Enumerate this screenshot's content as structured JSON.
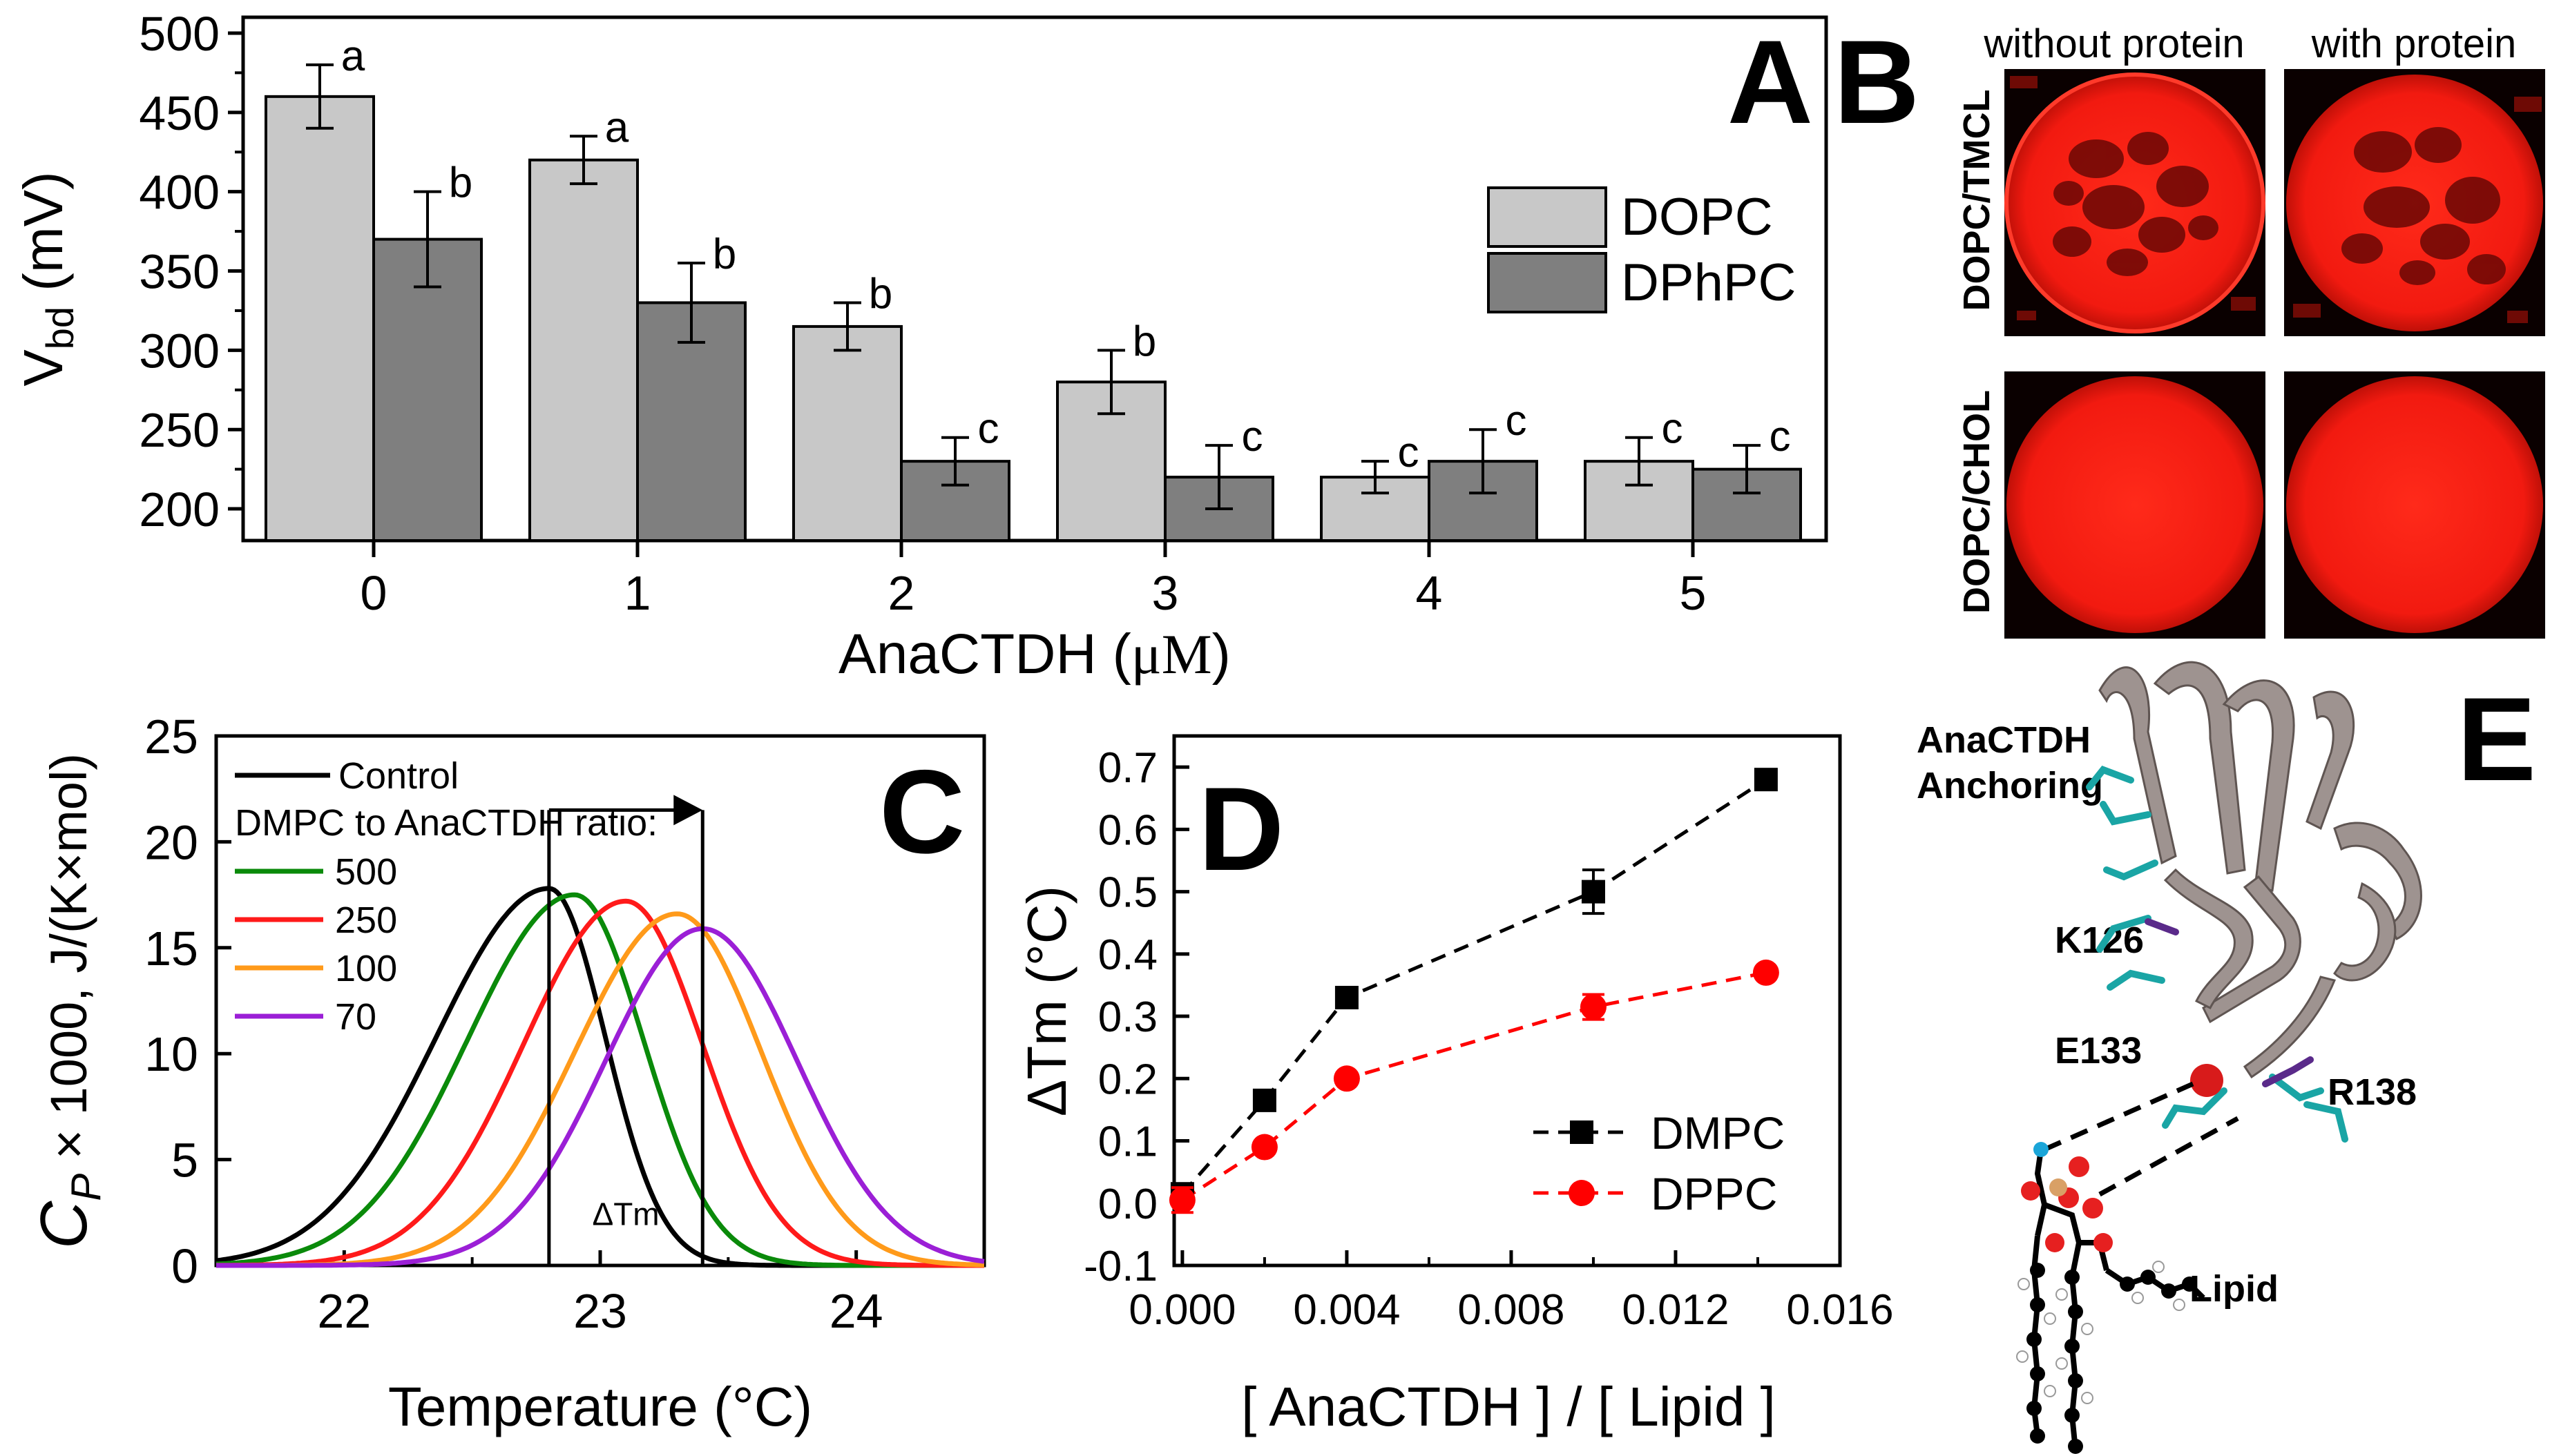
{
  "colors": {
    "dopc_bar": "#c8c8c8",
    "dphpc_bar": "#7f7f7f",
    "control": "#000000",
    "r500": "#0a8a0a",
    "r250": "#ff1a1a",
    "r100": "#ff9a1a",
    "r70": "#9b1fd6",
    "dmpc": "#000000",
    "dppc": "#ff0000",
    "confocal_red": "#ff1a1a"
  },
  "panels": {
    "a": "A",
    "b": "B",
    "c": "C",
    "d": "D",
    "e": "E"
  },
  "chart_data": [
    {
      "panel": "A",
      "type": "bar",
      "categories": [
        "0",
        "1",
        "2",
        "3",
        "4",
        "5"
      ],
      "xlabel_main": "AnaCTDH (",
      "xlabel_unit": "μM",
      "xlabel_close": ")",
      "ylabel_main": "V",
      "ylabel_sub": "bd",
      "ylabel_unit": " (mV)",
      "ylim": [
        180,
        510
      ],
      "yticks": [
        "200",
        "250",
        "300",
        "350",
        "400",
        "450",
        "500"
      ],
      "legend_position": "top-right",
      "series": [
        {
          "name": "DOPC",
          "values": [
            460,
            420,
            315,
            280,
            220,
            230
          ],
          "errors": [
            20,
            15,
            15,
            20,
            10,
            15
          ],
          "letters": [
            "a",
            "a",
            "b",
            "b",
            "c",
            "c"
          ]
        },
        {
          "name": "DPhPC",
          "values": [
            370,
            330,
            230,
            220,
            230,
            225
          ],
          "errors": [
            30,
            25,
            15,
            20,
            20,
            15
          ],
          "letters": [
            "b",
            "b",
            "c",
            "c",
            "c",
            "c"
          ]
        }
      ]
    },
    {
      "panel": "C",
      "type": "line",
      "xlabel": "Temperature (°C)",
      "ylabel_main": "C",
      "ylabel_sub": "P",
      "ylabel_rest": " × 1000, J/(K×mol)",
      "xlim": [
        21.5,
        24.5
      ],
      "ylim": [
        0,
        25
      ],
      "xticks": [
        "22",
        "23",
        "24"
      ],
      "yticks": [
        "0",
        "5",
        "10",
        "15",
        "20",
        "25"
      ],
      "legend_title": "DMPC to AnaCTDH ratio:",
      "annotation": "ΔTm",
      "delta_tm_range": [
        22.8,
        23.4
      ],
      "series": [
        {
          "name": "Control",
          "center": 22.8,
          "peak": 17.8,
          "wl": 0.44,
          "wr": 0.22
        },
        {
          "name": "500",
          "center": 22.9,
          "peak": 17.5,
          "wl": 0.42,
          "wr": 0.27
        },
        {
          "name": "250",
          "center": 23.1,
          "peak": 17.2,
          "wl": 0.4,
          "wr": 0.3
        },
        {
          "name": "100",
          "center": 23.3,
          "peak": 16.6,
          "wl": 0.4,
          "wr": 0.33
        },
        {
          "name": "70",
          "center": 23.4,
          "peak": 15.9,
          "wl": 0.38,
          "wr": 0.37
        }
      ]
    },
    {
      "panel": "D",
      "type": "scatter",
      "xlabel": "[ AnaCTDH ] / [ Lipid ]",
      "ylabel": "ΔTm (°C)",
      "xlim": [
        -0.0002,
        0.016
      ],
      "ylim": [
        -0.1,
        0.75
      ],
      "xticks": [
        "0.000",
        "0.004",
        "0.008",
        "0.012",
        "0.016"
      ],
      "yticks": [
        "-0.1",
        "0.0",
        "0.1",
        "0.2",
        "0.3",
        "0.4",
        "0.5",
        "0.6",
        "0.7"
      ],
      "legend_position": "bottom-right",
      "series": [
        {
          "name": "DMPC",
          "x": [
            0.0,
            0.002,
            0.004,
            0.01,
            0.0142
          ],
          "y": [
            0.015,
            0.165,
            0.33,
            0.5,
            0.68
          ],
          "errors": [
            0.0,
            0.0,
            0.0,
            0.035,
            0.0
          ]
        },
        {
          "name": "DPPC",
          "x": [
            0.0,
            0.002,
            0.004,
            0.01,
            0.0142
          ],
          "y": [
            0.005,
            0.09,
            0.2,
            0.315,
            0.37
          ],
          "errors": [
            0.02,
            0.0,
            0.0,
            0.02,
            0.0
          ]
        }
      ]
    }
  ],
  "panel_b": {
    "col_labels": [
      "without protein",
      "with protein"
    ],
    "row_labels": [
      "DOPC/TMCL",
      "DOPC/CHOL"
    ]
  },
  "panel_e": {
    "label_anchoring": "AnaCTDH",
    "label_anchoring_2": "Anchoring",
    "label_k126": "K126",
    "label_e133": "E133",
    "label_r138": "R138",
    "label_lipid": "Lipid"
  }
}
